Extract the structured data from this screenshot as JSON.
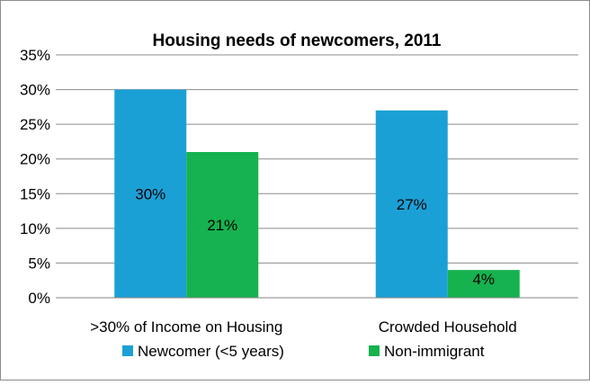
{
  "chart_data": {
    "type": "bar",
    "title": "Housing  needs of newcomers, 2011",
    "categories": [
      ">30% of Income on Housing",
      "Crowded Household"
    ],
    "series": [
      {
        "name": "Newcomer (<5 years)",
        "values": [
          30,
          27
        ],
        "labels": [
          "30%",
          "27%"
        ],
        "color": "#1ba0d6"
      },
      {
        "name": "Non-immigrant",
        "values": [
          21,
          4
        ],
        "labels": [
          "21%",
          "4%"
        ],
        "color": "#16b24f"
      }
    ],
    "ylim": [
      0,
      35
    ],
    "yticks": [
      "0%",
      "5%",
      "10%",
      "15%",
      "20%",
      "25%",
      "30%",
      "35%"
    ],
    "grid": true,
    "legend_position": "bottom"
  }
}
